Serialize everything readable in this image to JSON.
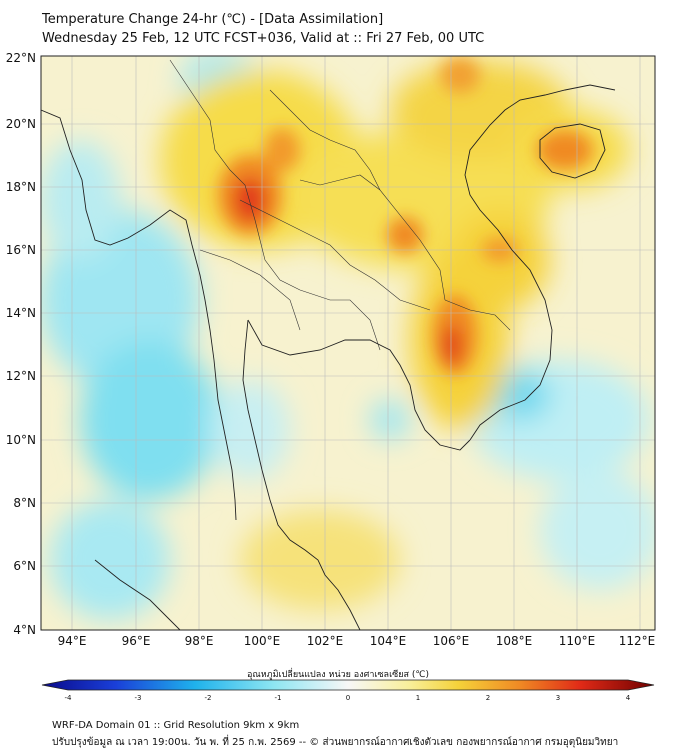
{
  "header": {
    "title": "Temperature Change 24-hr (℃) - [Data Assimilation]",
    "subtitle": "Wednesday 25 Feb, 12 UTC FCST+036, Valid at :: Fri 27 Feb, 00 UTC"
  },
  "map": {
    "lat_labels": [
      "22°N",
      "20°N",
      "18°N",
      "16°N",
      "14°N",
      "12°N",
      "10°N",
      "8°N",
      "6°N",
      "4°N"
    ],
    "lon_labels": [
      "94°E",
      "96°E",
      "98°E",
      "100°E",
      "102°E",
      "104°E",
      "106°E",
      "108°E",
      "110°E",
      "112°E"
    ],
    "lat_range": [
      4,
      22
    ],
    "lon_range": [
      93,
      112.5
    ],
    "colors": {
      "warm": "#f5d23a",
      "hot": "#f08a24",
      "hotter": "#e23c1e",
      "cool": "#8fe6f2",
      "cold": "#2fc3ee",
      "neutral": "#f6f0c8"
    }
  },
  "colorbar": {
    "label": "อุณหภูมิเปลี่ยนแปลง หน่วย องศาเซลเซียส (℃)",
    "ticks": [
      "-4",
      "-3",
      "-2",
      "-1",
      "0",
      "1",
      "2",
      "3",
      "4"
    ],
    "range": [
      -4,
      4
    ]
  },
  "footer": {
    "line1": "WRF-DA Domain 01 :: Grid Resolution 9km x 9km",
    "line2": "ปรับปรุงข้อมูล ณ เวลา 19:00น. วัน พ. ที่ 25 ก.พ. 2569 -- © ส่วนพยากรณ์อากาศเชิงตัวเลข กองพยากรณ์อากาศ กรมอุตุนิยมวิทยา"
  }
}
